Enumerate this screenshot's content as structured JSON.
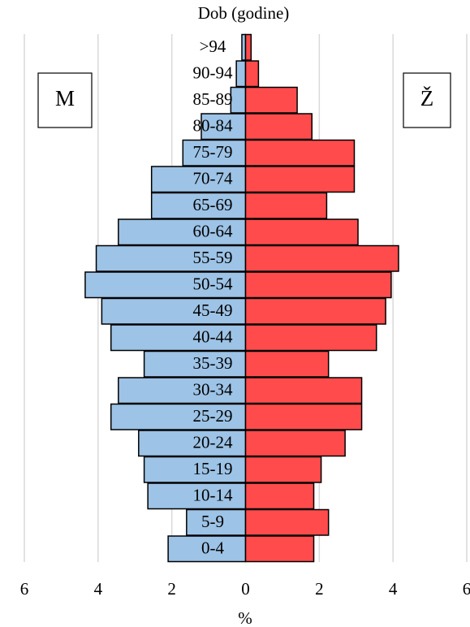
{
  "chart_data": {
    "type": "pyramid",
    "title": "Dob (godine)",
    "x_label": "%",
    "categories": [
      "0-4",
      "5-9",
      "10-14",
      "15-19",
      "20-24",
      "25-29",
      "30-34",
      "35-39",
      "40-44",
      "45-49",
      "50-54",
      "55-59",
      "60-64",
      "65-69",
      "70-74",
      "75-79",
      "80-84",
      "85-89",
      "90-94",
      ">94"
    ],
    "series": [
      {
        "name": "M",
        "color": "#9dc3e6",
        "values": [
          -2.1,
          -1.6,
          -2.65,
          -2.75,
          -2.9,
          -3.65,
          -3.45,
          -2.75,
          -3.65,
          -3.9,
          -4.35,
          -4.05,
          -3.45,
          -2.55,
          -2.55,
          -1.7,
          -1.2,
          -0.4,
          -0.25,
          -0.1
        ]
      },
      {
        "name": "Ž",
        "color": "#ff4b4b",
        "values": [
          1.85,
          2.25,
          1.85,
          2.05,
          2.7,
          3.15,
          3.15,
          2.25,
          3.55,
          3.8,
          3.95,
          4.15,
          3.05,
          2.2,
          2.95,
          2.95,
          1.8,
          1.4,
          0.35,
          0.15
        ]
      }
    ],
    "xlim": [
      -6,
      6
    ],
    "xticks": [
      {
        "value": -6,
        "label": "6"
      },
      {
        "value": -4,
        "label": "4"
      },
      {
        "value": -2,
        "label": "2"
      },
      0,
      2,
      4,
      6
    ],
    "grid": true
  }
}
